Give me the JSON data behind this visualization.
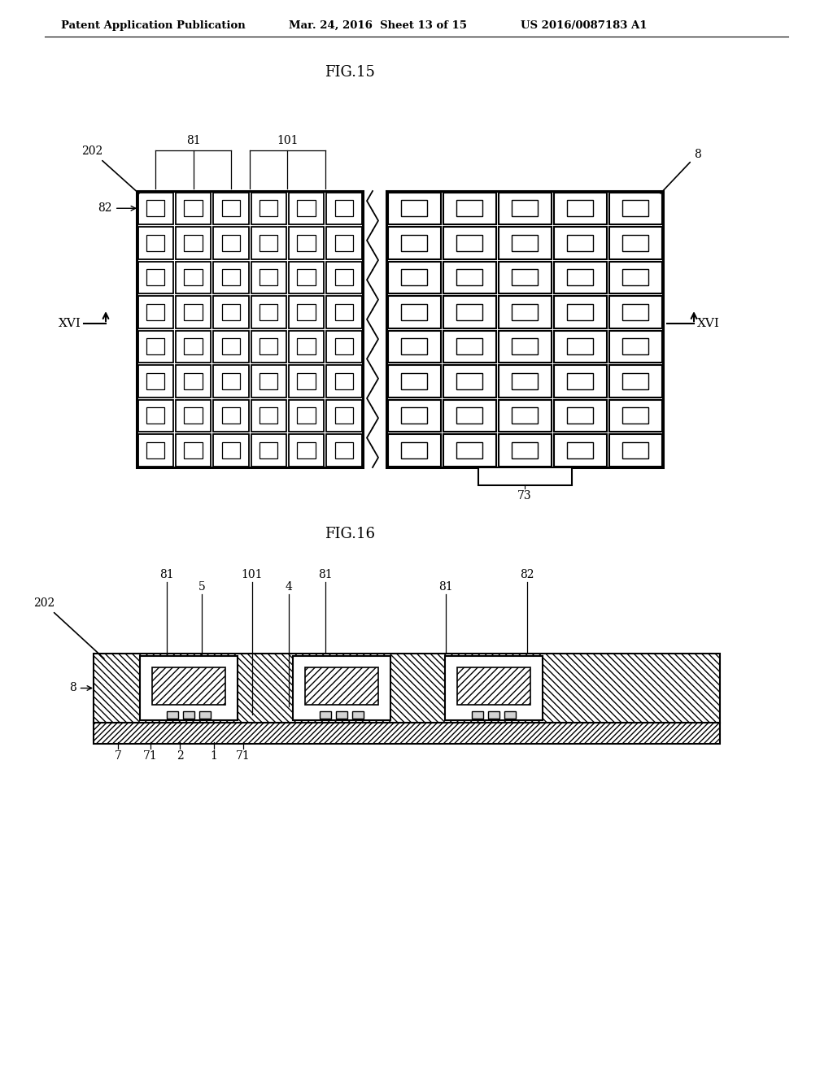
{
  "header_left": "Patent Application Publication",
  "header_mid": "Mar. 24, 2016  Sheet 13 of 15",
  "header_right": "US 2016/0087183 A1",
  "fig15_title": "FIG.15",
  "fig16_title": "FIG.16",
  "bg_color": "#ffffff",
  "lc": "#000000"
}
